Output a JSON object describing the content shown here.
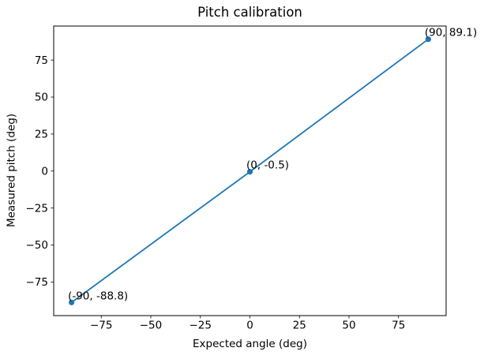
{
  "figure": {
    "background": "#ffffff",
    "text_color": "#000000",
    "spine_color": "#000000"
  },
  "chart_data": {
    "type": "line",
    "title": "Pitch calibration",
    "xlabel": "Expected angle (deg)",
    "ylabel": "Measured pitch (deg)",
    "x": [
      -90,
      0,
      90
    ],
    "y": [
      -88.8,
      -0.5,
      89.1
    ],
    "annotations": [
      "(-90, -88.8)",
      "(0, -0.5)",
      "(90, 89.1)"
    ],
    "line_color": "#1f77b4",
    "marker": "circle",
    "marker_color": "#1f77b4",
    "xticks": [
      -75,
      -50,
      -25,
      0,
      25,
      50,
      75
    ],
    "xtick_labels": [
      "−75",
      "−50",
      "−25",
      "0",
      "25",
      "50",
      "75"
    ],
    "yticks": [
      -75,
      -50,
      -25,
      0,
      25,
      50,
      75
    ],
    "ytick_labels": [
      "−75",
      "−50",
      "−25",
      "0",
      "25",
      "50",
      "75"
    ],
    "xlim": [
      -99,
      99
    ],
    "ylim": [
      -97.7,
      98.0
    ],
    "grid": false,
    "legend_position": "none"
  }
}
